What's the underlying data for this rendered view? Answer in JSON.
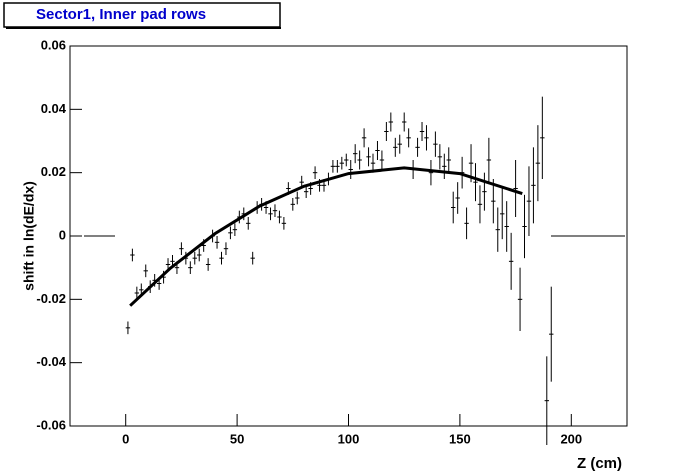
{
  "chart_data": {
    "type": "scatter",
    "title": "Sector1, Inner pad rows",
    "x_label": "Z (cm)",
    "y_label": "shift in ln(dE/dx)",
    "xlim": [
      -25,
      225
    ],
    "ylim": [
      -0.06,
      0.06
    ],
    "xticks": [
      0,
      50,
      100,
      150,
      200
    ],
    "yticks": [
      -0.06,
      -0.04,
      -0.02,
      0,
      0.02,
      0.04,
      0.06
    ],
    "color": "#000000",
    "x": [
      1,
      3,
      5,
      7,
      9,
      11,
      13,
      15,
      17,
      19,
      21,
      23,
      25,
      27,
      29,
      31,
      33,
      35,
      37,
      39,
      41,
      43,
      45,
      47,
      49,
      51,
      53,
      55,
      57,
      59,
      61,
      63,
      65,
      67,
      69,
      71,
      73,
      75,
      77,
      79,
      81,
      83,
      85,
      87,
      89,
      91,
      93,
      95,
      97,
      99,
      101,
      103,
      105,
      107,
      109,
      111,
      113,
      115,
      117,
      119,
      121,
      123,
      125,
      127,
      129,
      131,
      133,
      135,
      137,
      139,
      141,
      143,
      145,
      147,
      149,
      151,
      153,
      155,
      157,
      159,
      161,
      163,
      165,
      167,
      169,
      171,
      173,
      175,
      177,
      179,
      181,
      183,
      185,
      187,
      189,
      191
    ],
    "values": [
      -0.029,
      -0.006,
      -0.018,
      -0.017,
      -0.011,
      -0.016,
      -0.014,
      -0.015,
      -0.013,
      -0.009,
      -0.008,
      -0.01,
      -0.004,
      -0.007,
      -0.01,
      -0.007,
      -0.006,
      -0.003,
      -0.009,
      0.0,
      -0.002,
      -0.007,
      -0.004,
      0.001,
      0.002,
      0.006,
      0.007,
      0.004,
      -0.007,
      0.009,
      0.01,
      0.009,
      0.007,
      0.008,
      0.006,
      0.004,
      0.015,
      0.01,
      0.012,
      0.017,
      0.014,
      0.015,
      0.02,
      0.016,
      0.016,
      0.018,
      0.022,
      0.022,
      0.023,
      0.024,
      0.021,
      0.026,
      0.024,
      0.031,
      0.025,
      0.023,
      0.027,
      0.024,
      0.033,
      0.036,
      0.028,
      0.029,
      0.036,
      0.031,
      0.021,
      0.028,
      0.033,
      0.031,
      0.02,
      0.029,
      0.025,
      0.022,
      0.024,
      0.009,
      0.012,
      0.02,
      0.004,
      0.023,
      0.017,
      0.01,
      0.014,
      0.024,
      0.011,
      0.002,
      0.007,
      0.003,
      -0.008,
      0.015,
      -0.02,
      0.003,
      0.011,
      0.016,
      0.023,
      0.031,
      -0.052,
      -0.031
    ],
    "errors": [
      0.002,
      0.002,
      0.002,
      0.002,
      0.002,
      0.002,
      0.002,
      0.002,
      0.002,
      0.002,
      0.002,
      0.002,
      0.002,
      0.002,
      0.002,
      0.002,
      0.002,
      0.002,
      0.002,
      0.002,
      0.002,
      0.002,
      0.002,
      0.002,
      0.002,
      0.002,
      0.002,
      0.002,
      0.002,
      0.002,
      0.002,
      0.002,
      0.002,
      0.002,
      0.002,
      0.002,
      0.002,
      0.002,
      0.002,
      0.002,
      0.002,
      0.002,
      0.002,
      0.002,
      0.002,
      0.002,
      0.002,
      0.002,
      0.002,
      0.002,
      0.003,
      0.003,
      0.003,
      0.003,
      0.003,
      0.003,
      0.003,
      0.003,
      0.003,
      0.003,
      0.003,
      0.003,
      0.003,
      0.003,
      0.003,
      0.003,
      0.003,
      0.004,
      0.004,
      0.004,
      0.004,
      0.004,
      0.004,
      0.005,
      0.005,
      0.005,
      0.005,
      0.006,
      0.006,
      0.006,
      0.006,
      0.007,
      0.007,
      0.007,
      0.008,
      0.008,
      0.009,
      0.009,
      0.01,
      0.01,
      0.011,
      0.012,
      0.012,
      0.013,
      0.014,
      0.015
    ],
    "fit": {
      "x": [
        2,
        20,
        40,
        60,
        80,
        100,
        125,
        150,
        178
      ],
      "values": [
        -0.022,
        -0.0102,
        0.0007,
        0.0094,
        0.0157,
        0.0197,
        0.0215,
        0.0197,
        0.0134
      ]
    }
  }
}
